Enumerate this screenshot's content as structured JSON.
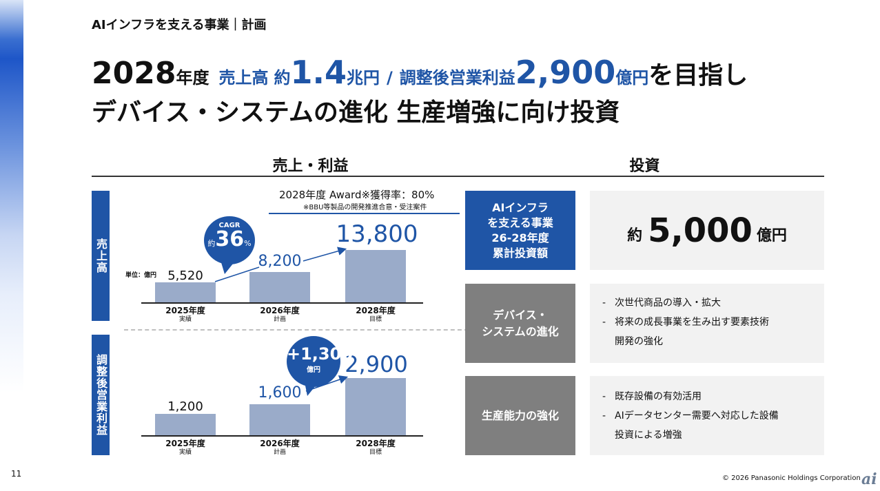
{
  "breadcrumb": "AIインフラを支える事業｜計画",
  "headline": {
    "line1": {
      "year": "2028",
      "year_suffix": "年度",
      "sales_label": "売上高",
      "approx": "約",
      "sales_value": "1.4",
      "sales_unit": "兆円",
      "slash": "/",
      "op_label": "調整後営業利益",
      "op_value": "2,900",
      "op_unit": "億円",
      "tail": "を目指し"
    },
    "line2": "デバイス・システムの進化 生産増強に向け投資"
  },
  "left": {
    "title": "売上・利益",
    "award": {
      "line1": "2028年度 Award※獲得率：80%",
      "line2": "※BBU等製品の開発推進合意・受注案件"
    },
    "sales": {
      "label": "売上高",
      "unit": "単位：億円",
      "cagr": {
        "label": "CAGR",
        "approx": "約",
        "value": "36",
        "pct": "%"
      },
      "bars": [
        {
          "year": "2025年度",
          "sub": "実績",
          "value": "5,520"
        },
        {
          "year": "2026年度",
          "sub": "計画",
          "value": "8,200"
        },
        {
          "year": "2028年度",
          "sub": "目標",
          "value": "13,800"
        }
      ]
    },
    "profit": {
      "label": "調整後営業利益",
      "delta": {
        "value": "+1,300",
        "unit": "億円"
      },
      "bars": [
        {
          "year": "2025年度",
          "sub": "実績",
          "value": "1,200"
        },
        {
          "year": "2026年度",
          "sub": "計画",
          "value": "1,600"
        },
        {
          "year": "2028年度",
          "sub": "目標",
          "value": "2,900"
        }
      ]
    }
  },
  "right": {
    "title": "投資",
    "rows": [
      {
        "label": "AIインフラ\nを支える事業\n26-28年度\n累計投資額",
        "approx": "約",
        "amount": "5,000",
        "unit": "億円"
      },
      {
        "label": "デバイス・\nシステムの進化",
        "bullets": [
          "次世代商品の導入・拡大",
          "将来の成長事業を生み出す要素技術"
        ],
        "continuation": "開発の強化"
      },
      {
        "label": "生産能力の強化",
        "bullets": [
          "既存設備の有効活用",
          "AIデータセンター需要へ対応した設備"
        ],
        "continuation": "投資による増強"
      }
    ]
  },
  "page_number": "11",
  "copyright": "© 2026 Panasonic Holdings Corporation",
  "colors": {
    "accent": "#1f55a6",
    "bar": "#9aabc9",
    "gray_box": "#7f7f7f",
    "light_box": "#f2f2f2"
  }
}
